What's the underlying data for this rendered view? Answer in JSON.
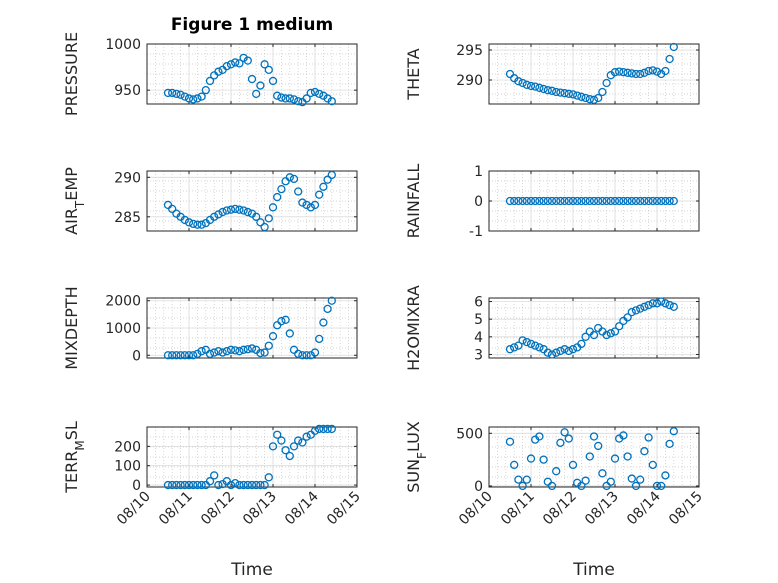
{
  "figure": {
    "title": "Figure 1 medium",
    "xlabel": "Time",
    "marker_color": "#0072BD",
    "grid": "on (major and minor, dotted)",
    "x_tick_labels": [
      "08/10",
      "08/11",
      "08/12",
      "08/13",
      "08/14",
      "08/15"
    ]
  },
  "chart_data": [
    {
      "type": "scatter",
      "ylabel": "PRESSURE",
      "xlim": [
        0,
        5
      ],
      "ylim": [
        935,
        1000
      ],
      "yticks": [
        950,
        1000
      ],
      "x": [
        0.5,
        0.6,
        0.7,
        0.8,
        0.9,
        1.0,
        1.1,
        1.2,
        1.3,
        1.4,
        1.5,
        1.6,
        1.7,
        1.8,
        1.9,
        2.0,
        2.1,
        2.2,
        2.3,
        2.4,
        2.5,
        2.6,
        2.7,
        2.8,
        2.9,
        3.0,
        3.1,
        3.2,
        3.3,
        3.4,
        3.5,
        3.6,
        3.7,
        3.8,
        3.9,
        4.0,
        4.1,
        4.2,
        4.3,
        4.4
      ],
      "y": [
        947,
        947,
        946,
        945,
        943,
        941,
        940,
        941,
        943,
        950,
        960,
        966,
        970,
        972,
        976,
        978,
        980,
        979,
        985,
        982,
        962,
        946,
        955,
        978,
        972,
        960,
        944,
        942,
        941,
        941,
        940,
        938,
        937,
        941,
        947,
        948,
        946,
        944,
        941,
        938
      ]
    },
    {
      "type": "scatter",
      "ylabel": "THETA",
      "xlim": [
        0,
        5
      ],
      "ylim": [
        286,
        296
      ],
      "yticks": [
        290,
        295
      ],
      "x": [
        0.5,
        0.6,
        0.7,
        0.8,
        0.9,
        1.0,
        1.1,
        1.2,
        1.3,
        1.4,
        1.5,
        1.6,
        1.7,
        1.8,
        1.9,
        2.0,
        2.1,
        2.2,
        2.3,
        2.4,
        2.5,
        2.6,
        2.7,
        2.8,
        2.9,
        3.0,
        3.1,
        3.2,
        3.3,
        3.4,
        3.5,
        3.6,
        3.7,
        3.8,
        3.9,
        4.0,
        4.1,
        4.2,
        4.3,
        4.4
      ],
      "y": [
        291,
        290.3,
        289.8,
        289.5,
        289.2,
        289,
        288.9,
        288.7,
        288.5,
        288.3,
        288.2,
        288,
        287.9,
        287.8,
        287.7,
        287.6,
        287.4,
        287.2,
        287,
        286.8,
        286.7,
        287,
        288,
        289.5,
        290.8,
        291.3,
        291.4,
        291.3,
        291.2,
        291.1,
        291,
        291,
        291.2,
        291.5,
        291.6,
        291.4,
        291,
        291.5,
        293.5,
        295.5
      ]
    },
    {
      "type": "scatter",
      "ylabel": "AIR_TEMP",
      "xlim": [
        0,
        5
      ],
      "ylim": [
        283.2,
        290.8
      ],
      "yticks": [
        285,
        290
      ],
      "x": [
        0.5,
        0.6,
        0.7,
        0.8,
        0.9,
        1.0,
        1.1,
        1.2,
        1.3,
        1.4,
        1.5,
        1.6,
        1.7,
        1.8,
        1.9,
        2.0,
        2.1,
        2.2,
        2.3,
        2.4,
        2.5,
        2.6,
        2.7,
        2.8,
        2.9,
        3.0,
        3.1,
        3.2,
        3.3,
        3.4,
        3.5,
        3.6,
        3.7,
        3.8,
        3.9,
        4.0,
        4.1,
        4.2,
        4.3,
        4.4
      ],
      "y": [
        286.5,
        286,
        285.4,
        285,
        284.6,
        284.3,
        284.1,
        284,
        284,
        284.2,
        284.6,
        285,
        285.3,
        285.6,
        285.8,
        285.9,
        286,
        285.9,
        285.8,
        285.6,
        285.4,
        285,
        284.3,
        283.7,
        284.8,
        286.2,
        287.5,
        288.5,
        289.5,
        290,
        289.8,
        288.2,
        286.8,
        286.5,
        286.2,
        286.5,
        287.8,
        288.8,
        289.7,
        290.3
      ]
    },
    {
      "type": "scatter",
      "ylabel": "RAINFALL",
      "xlim": [
        0,
        5
      ],
      "ylim": [
        -1,
        1
      ],
      "yticks": [
        -1,
        0,
        1
      ],
      "x": [
        0.5,
        0.6,
        0.7,
        0.8,
        0.9,
        1.0,
        1.1,
        1.2,
        1.3,
        1.4,
        1.5,
        1.6,
        1.7,
        1.8,
        1.9,
        2.0,
        2.1,
        2.2,
        2.3,
        2.4,
        2.5,
        2.6,
        2.7,
        2.8,
        2.9,
        3.0,
        3.1,
        3.2,
        3.3,
        3.4,
        3.5,
        3.6,
        3.7,
        3.8,
        3.9,
        4.0,
        4.1,
        4.2,
        4.3,
        4.4
      ],
      "y": [
        0,
        0,
        0,
        0,
        0,
        0,
        0,
        0,
        0,
        0,
        0,
        0,
        0,
        0,
        0,
        0,
        0,
        0,
        0,
        0,
        0,
        0,
        0,
        0,
        0,
        0,
        0,
        0,
        0,
        0,
        0,
        0,
        0,
        0,
        0,
        0,
        0,
        0,
        0,
        0
      ]
    },
    {
      "type": "scatter",
      "ylabel": "MIXDEPTH",
      "xlim": [
        0,
        5
      ],
      "ylim": [
        -100,
        2100
      ],
      "yticks": [
        0,
        1000,
        2000
      ],
      "x": [
        0.5,
        0.6,
        0.7,
        0.8,
        0.9,
        1.0,
        1.1,
        1.2,
        1.3,
        1.4,
        1.5,
        1.6,
        1.7,
        1.8,
        1.9,
        2.0,
        2.1,
        2.2,
        2.3,
        2.4,
        2.5,
        2.6,
        2.7,
        2.8,
        2.9,
        3.0,
        3.1,
        3.2,
        3.3,
        3.4,
        3.5,
        3.6,
        3.7,
        3.8,
        3.9,
        4.0,
        4.1,
        4.2,
        4.3,
        4.4
      ],
      "y": [
        0,
        0,
        0,
        0,
        0,
        0,
        0,
        50,
        150,
        200,
        50,
        100,
        150,
        100,
        150,
        200,
        180,
        150,
        200,
        220,
        250,
        200,
        80,
        100,
        350,
        700,
        1100,
        1250,
        1300,
        800,
        200,
        50,
        0,
        0,
        0,
        100,
        600,
        1200,
        1700,
        2000
      ]
    },
    {
      "type": "scatter",
      "ylabel": "H2OMIXRA",
      "xlim": [
        0,
        5
      ],
      "ylim": [
        2.8,
        6.2
      ],
      "yticks": [
        3,
        4,
        5,
        6
      ],
      "x": [
        0.5,
        0.6,
        0.7,
        0.8,
        0.9,
        1.0,
        1.1,
        1.2,
        1.3,
        1.4,
        1.5,
        1.6,
        1.7,
        1.8,
        1.9,
        2.0,
        2.1,
        2.2,
        2.3,
        2.4,
        2.5,
        2.6,
        2.7,
        2.8,
        2.9,
        3.0,
        3.1,
        3.2,
        3.3,
        3.4,
        3.5,
        3.6,
        3.7,
        3.8,
        3.9,
        4.0,
        4.1,
        4.2,
        4.3,
        4.4
      ],
      "y": [
        3.3,
        3.4,
        3.5,
        3.8,
        3.7,
        3.6,
        3.5,
        3.4,
        3.3,
        3.1,
        3.0,
        3.1,
        3.2,
        3.3,
        3.2,
        3.3,
        3.4,
        3.6,
        4.0,
        4.3,
        4.1,
        4.5,
        4.3,
        4.1,
        4.2,
        4.3,
        4.6,
        4.9,
        5.1,
        5.4,
        5.5,
        5.6,
        5.7,
        5.8,
        5.9,
        5.9,
        6.0,
        5.9,
        5.8,
        5.7
      ]
    },
    {
      "type": "scatter",
      "ylabel": "TERR_MSL",
      "xlim": [
        0,
        5
      ],
      "ylim": [
        -10,
        300
      ],
      "yticks": [
        0,
        100,
        200
      ],
      "x": [
        0.5,
        0.6,
        0.7,
        0.8,
        0.9,
        1.0,
        1.1,
        1.2,
        1.3,
        1.4,
        1.5,
        1.6,
        1.7,
        1.8,
        1.9,
        2.0,
        2.1,
        2.2,
        2.3,
        2.4,
        2.5,
        2.6,
        2.7,
        2.8,
        2.9,
        3.0,
        3.1,
        3.2,
        3.3,
        3.4,
        3.5,
        3.6,
        3.7,
        3.8,
        3.9,
        4.0,
        4.1,
        4.2,
        4.3,
        4.4
      ],
      "y": [
        0,
        0,
        0,
        0,
        0,
        0,
        0,
        0,
        0,
        0,
        20,
        50,
        0,
        5,
        20,
        0,
        10,
        0,
        0,
        0,
        0,
        0,
        0,
        0,
        40,
        200,
        260,
        230,
        180,
        150,
        200,
        230,
        220,
        250,
        260,
        280,
        290,
        290,
        290,
        290
      ]
    },
    {
      "type": "scatter",
      "ylabel": "SUN_FLUX",
      "xlim": [
        0,
        5
      ],
      "ylim": [
        -10,
        560
      ],
      "yticks": [
        0,
        500
      ],
      "x": [
        0.5,
        0.6,
        0.7,
        0.8,
        0.9,
        1.0,
        1.1,
        1.2,
        1.3,
        1.4,
        1.5,
        1.6,
        1.7,
        1.8,
        1.9,
        2.0,
        2.1,
        2.2,
        2.3,
        2.4,
        2.5,
        2.6,
        2.7,
        2.8,
        2.9,
        3.0,
        3.1,
        3.2,
        3.3,
        3.4,
        3.5,
        3.6,
        3.7,
        3.8,
        3.9,
        4.0,
        4.1,
        4.2,
        4.3,
        4.4
      ],
      "y": [
        420,
        200,
        60,
        0,
        60,
        260,
        440,
        470,
        250,
        40,
        0,
        140,
        410,
        510,
        450,
        200,
        30,
        0,
        50,
        280,
        470,
        380,
        120,
        0,
        40,
        260,
        450,
        480,
        280,
        70,
        0,
        60,
        330,
        460,
        200,
        0,
        0,
        100,
        400,
        520
      ]
    }
  ]
}
